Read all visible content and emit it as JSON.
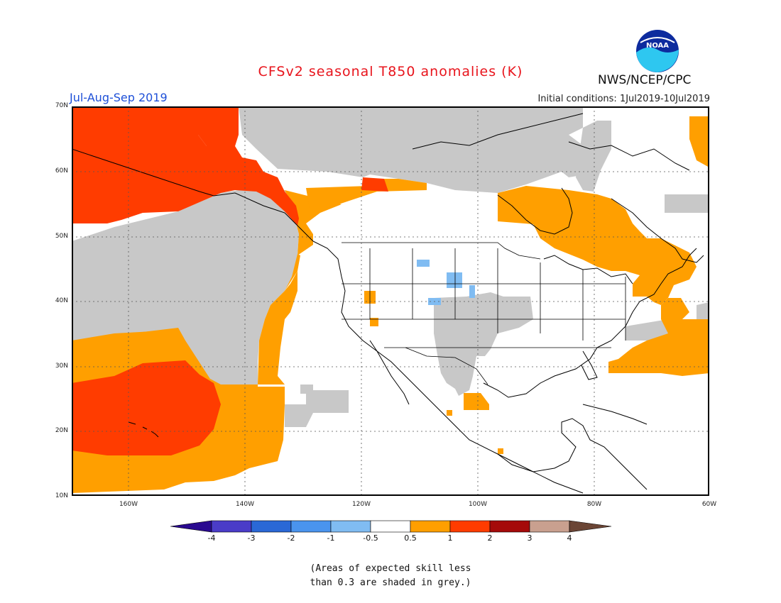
{
  "title": "CFSv2 seasonal T850 anomalies (K)",
  "season": "Jul-Aug-Sep 2019",
  "initial_conditions": "Initial conditions: 1Jul2019-10Jul2019",
  "agency": "NWS/NCEP/CPC",
  "logo_text": "NOAA",
  "latitude_labels": [
    "70N",
    "60N",
    "50N",
    "40N",
    "30N",
    "20N",
    "10N"
  ],
  "longitude_labels": [
    "160W",
    "140W",
    "120W",
    "100W",
    "80W",
    "60W"
  ],
  "colorbar": {
    "labels": [
      "-4",
      "-3",
      "-2",
      "-1",
      "-0.5",
      "0.5",
      "1",
      "2",
      "3",
      "4"
    ],
    "colors": {
      "below_-4": "#2a0a90",
      "-4_-3": "#4a3cc8",
      "-3_-2": "#2a68d6",
      "-2_-1": "#4a94ee",
      "-1_-0.5": "#80bcf2",
      "-0.5_0.5": "#ffffff",
      "0.5_1": "#ff9f00",
      "1_2": "#ff3c00",
      "2_3": "#a50a0a",
      "3_4": "#c9a08f",
      "above_4": "#6b4535"
    }
  },
  "legend_colors": {
    "low_skill_grey": "#c8c8c8",
    "anomaly_0_5_to_1": "#ff9f00",
    "anomaly_1_to_2": "#ff3c00",
    "anomaly_-1_to_-0_5": "#80bcf2"
  },
  "note_line1": "(Areas of expected skill less",
  "note_line2": "than 0.3 are shaded in grey.)"
}
